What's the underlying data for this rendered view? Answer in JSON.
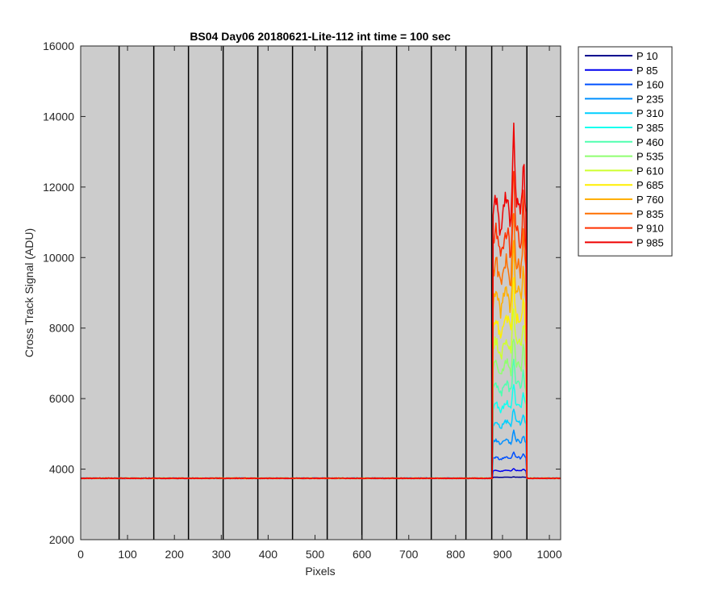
{
  "chart_data": {
    "type": "line",
    "title": "BS04 Day06 20180621-Lite-112 int time = 100 sec",
    "xlabel": "Pixels",
    "ylabel": "Cross Track Signal (ADU)",
    "xlim": [
      0,
      1024
    ],
    "ylim": [
      2000,
      16000
    ],
    "xticks": [
      0,
      100,
      200,
      300,
      400,
      500,
      600,
      700,
      800,
      900,
      1000
    ],
    "yticks": [
      2000,
      4000,
      6000,
      8000,
      10000,
      12000,
      14000,
      16000
    ],
    "background": "#cccccc",
    "grid": false,
    "legend_location": "outside-right",
    "vertical_lines_x": [
      82,
      156,
      230,
      304,
      378,
      452,
      526,
      600,
      674,
      748,
      822,
      877,
      952
    ],
    "baseline": 3740,
    "signal_range": [
      880,
      950
    ],
    "series": [
      {
        "name": "P 10",
        "color": "#00008f",
        "plateau": 3770
      },
      {
        "name": "P 85",
        "color": "#0000ef",
        "plateau": 3950
      },
      {
        "name": "P 160",
        "color": "#0050ff",
        "plateau": 4300
      },
      {
        "name": "P 235",
        "color": "#0090ff",
        "plateau": 4750
      },
      {
        "name": "P 310",
        "color": "#00cfff",
        "plateau": 5250
      },
      {
        "name": "P 385",
        "color": "#10ffef",
        "plateau": 5750
      },
      {
        "name": "P 460",
        "color": "#50ffaf",
        "plateau": 6250
      },
      {
        "name": "P 535",
        "color": "#8fff70",
        "plateau": 6800
      },
      {
        "name": "P 610",
        "color": "#cfff30",
        "plateau": 7400
      },
      {
        "name": "P 685",
        "color": "#ffef00",
        "plateau": 8000
      },
      {
        "name": "P 760",
        "color": "#ffaf00",
        "plateau": 8700
      },
      {
        "name": "P 835",
        "color": "#ff7000",
        "plateau": 9500
      },
      {
        "name": "P 910",
        "color": "#ff3000",
        "plateau": 10300
      },
      {
        "name": "P 985",
        "color": "#ef0000",
        "plateau": 11200
      }
    ]
  }
}
